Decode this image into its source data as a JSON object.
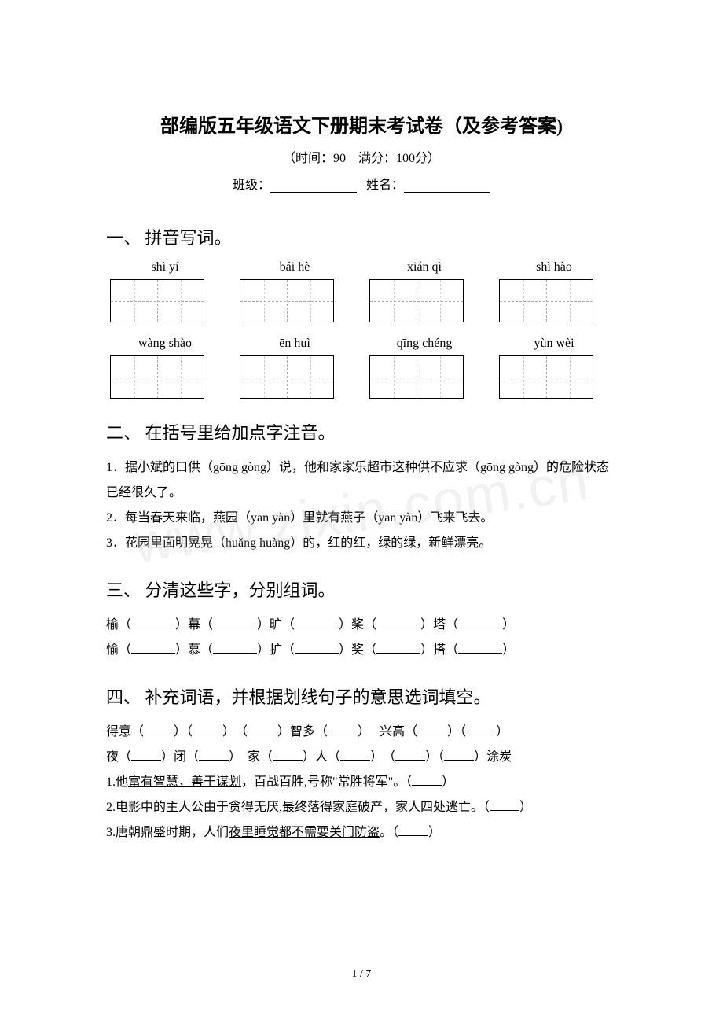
{
  "title": "部编版五年级语文下册期末考试卷（及参考答案)",
  "subtitle": "（时间：90　满分：100分）",
  "info": {
    "class_label": "班级：",
    "name_label": "姓名："
  },
  "section1": {
    "heading": "一、 拼音写词。",
    "row1": [
      "shì yí",
      "bái hè",
      "xián qì",
      "shì hào"
    ],
    "row2": [
      "wàng shào",
      "ēn huì",
      "qīng chéng",
      "yùn wèi"
    ]
  },
  "section2": {
    "heading": "二、 在括号里给加点字注音。",
    "line1": "1．据小斌的口供（gōng gòng）说，他和家家乐超市这种供不应求（gōng gòng）的危险状态已经很久了。",
    "line2": "2．每当春天来临，燕园（yān yàn）里就有燕子（yān yàn）飞来飞去。",
    "line3": "3．花园里面明晃晃（huǎng huàng）的，红的红，绿的绿，新鲜漂亮。"
  },
  "section3": {
    "heading": "三、 分清这些字，分别组词。",
    "row1": [
      "榆（",
      "）幕（",
      "）旷（",
      "）桨（",
      "）塔（",
      "）"
    ],
    "row2": [
      "愉（",
      "）慕（",
      "）扩（",
      "）奖（",
      "）搭（",
      "）"
    ]
  },
  "section4": {
    "heading": "四、 补充词语，并根据划线句子的意思选词填空。",
    "r1": [
      "得意（",
      "）（",
      "）　（",
      "）智多（",
      "）　 兴高（",
      "）（",
      "）"
    ],
    "r2": [
      "夜（",
      "）闭（",
      "）　家（",
      "）人（",
      "）　（",
      "）（",
      "）涂炭"
    ],
    "q1a": "1.他",
    "q1u": "富有智慧，善于谋划",
    "q1b": "，百战百胜,号称\"常胜将军\"。（",
    "q1c": "）",
    "q2a": "2.电影中的主人公由于贪得无厌,最终落得",
    "q2u": "家庭破产，家人四处逃亡",
    "q2b": "。（",
    "q2c": "）",
    "q3a": "3.唐朝鼎盛时期，人们",
    "q3u": "夜里睡觉都不需要关门防盗",
    "q3b": "。（",
    "q3c": "）"
  },
  "pagenum": "1 / 7",
  "watermark": "www.zixin.com.cn"
}
